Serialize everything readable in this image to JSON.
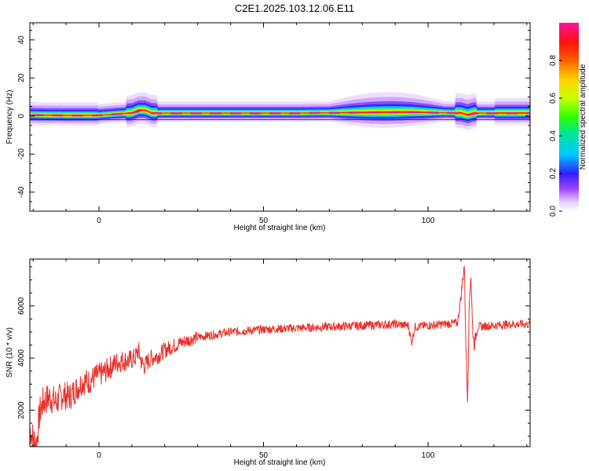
{
  "title": "C2E1.2025.103.12.06.E11",
  "chart_data": [
    {
      "type": "heatmap",
      "xlabel": "Height of straight line (km)",
      "ylabel": "Frequency (Hz)",
      "xlim": [
        -21,
        131
      ],
      "ylim": [
        -50,
        49
      ],
      "xticks": [
        0,
        50,
        100
      ],
      "yticks": [
        40,
        20,
        0,
        -20,
        -40
      ],
      "colorbar": {
        "label": "Normalized spectral amplitude",
        "range": [
          0.0,
          1.0
        ],
        "ticks": [
          "0.0",
          "0.2",
          "0.4",
          "0.6",
          "0.8"
        ]
      },
      "ridge": [
        {
          "x": -21,
          "f": 0.5
        },
        {
          "x": -10,
          "f": 0.3
        },
        {
          "x": 0,
          "f": 0.3
        },
        {
          "x": 5,
          "f": 1.0
        },
        {
          "x": 10,
          "f": 1.5
        },
        {
          "x": 12,
          "f": 3.0
        },
        {
          "x": 14,
          "f": 3.0
        },
        {
          "x": 16,
          "f": 1.5
        },
        {
          "x": 30,
          "f": 1.5
        },
        {
          "x": 60,
          "f": 1.5
        },
        {
          "x": 95,
          "f": 2.0
        },
        {
          "x": 110,
          "f": 1.5
        },
        {
          "x": 112,
          "f": 0.5
        },
        {
          "x": 114,
          "f": 1.5
        },
        {
          "x": 131,
          "f": 1.5
        }
      ]
    },
    {
      "type": "line",
      "xlabel": "Height of straight line (km)",
      "ylabel": "SNR (10 * v/v)",
      "xlim": [
        -21,
        131
      ],
      "ylim": [
        600,
        7800
      ],
      "xticks": [
        0,
        50,
        100
      ],
      "yticks": [
        2000,
        4000,
        6000
      ],
      "color": "#e8302a",
      "series": [
        {
          "x": [
            -21,
            -20,
            -19,
            -18,
            -17,
            -15,
            -13,
            -11,
            -9,
            -7,
            -5,
            -3,
            -1,
            1,
            3,
            5,
            7,
            9,
            11,
            12,
            13,
            14,
            15,
            16,
            18,
            20,
            25,
            30,
            35,
            40,
            50,
            60,
            70,
            80,
            90,
            94,
            95,
            96,
            100,
            105,
            109,
            110,
            111,
            111.5,
            112,
            112.5,
            113,
            113.5,
            114,
            115,
            120,
            125,
            131
          ],
          "y": [
            1300,
            900,
            700,
            1900,
            2300,
            2500,
            2300,
            2600,
            2500,
            2800,
            3100,
            3100,
            3300,
            3400,
            3600,
            3800,
            3900,
            3900,
            4000,
            4300,
            3800,
            3700,
            3900,
            4000,
            4100,
            4300,
            4600,
            4800,
            4900,
            5000,
            5100,
            5150,
            5200,
            5250,
            5300,
            5250,
            4600,
            5200,
            5250,
            5300,
            5350,
            6400,
            7600,
            4500,
            2400,
            6000,
            7300,
            5200,
            4500,
            5200,
            5250,
            5300,
            5300
          ]
        }
      ]
    }
  ]
}
